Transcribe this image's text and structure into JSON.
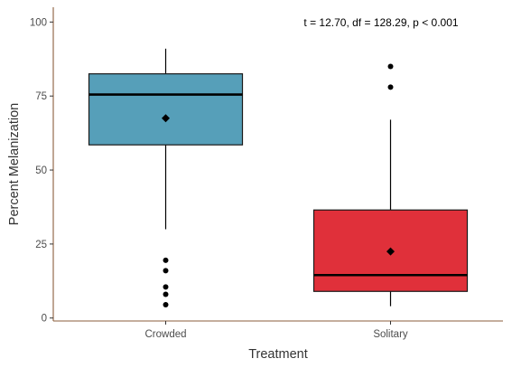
{
  "chart_data": {
    "type": "boxplot",
    "title": "",
    "xlabel": "Treatment",
    "ylabel": "Percent Melanization",
    "ylim": [
      -1,
      105
    ],
    "yticks": [
      0,
      25,
      50,
      75,
      100
    ],
    "grid": false,
    "legend": "none",
    "annotation": "t = 12.70, df = 128.29, p < 0.001",
    "axis_color": "#8b5e3c",
    "categories": [
      "Crowded",
      "Solitary"
    ],
    "boxes": [
      {
        "category": "Crowded",
        "color": "#569fb9",
        "whisker_low": 30,
        "q1": 58.5,
        "median": 75.5,
        "q3": 82.5,
        "whisker_high": 91,
        "mean": 67.5,
        "outliers": [
          19.5,
          16,
          10.5,
          8,
          4.5
        ]
      },
      {
        "category": "Solitary",
        "color": "#e0303a",
        "whisker_low": 4,
        "q1": 9,
        "median": 14.5,
        "q3": 36.5,
        "whisker_high": 67,
        "mean": 22.5,
        "outliers": [
          85,
          78
        ]
      }
    ]
  }
}
